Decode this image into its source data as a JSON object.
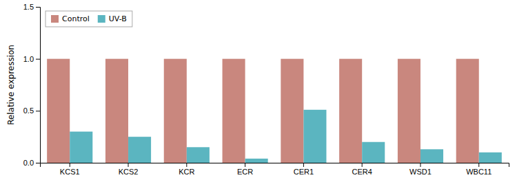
{
  "chart_data": {
    "type": "bar",
    "categories": [
      "KCS1",
      "KCS2",
      "KCR",
      "ECR",
      "CER1",
      "CER4",
      "WSD1",
      "WBC11"
    ],
    "series": [
      {
        "name": "Control",
        "color": "#C9877E",
        "values": [
          1.0,
          1.0,
          1.0,
          1.0,
          1.0,
          1.0,
          1.0,
          1.0
        ]
      },
      {
        "name": "UV-B",
        "color": "#5BB5C0",
        "values": [
          0.3,
          0.25,
          0.15,
          0.04,
          0.51,
          0.2,
          0.13,
          0.1
        ]
      }
    ],
    "ylabel": "Relative expression",
    "ylim": [
      0,
      1.5
    ],
    "yticks": [
      {
        "value": 0.0,
        "label": "0.0"
      },
      {
        "value": 0.5,
        "label": "0.5"
      },
      {
        "value": 1.0,
        "label": "1.0"
      },
      {
        "value": 1.5,
        "label": "1.5"
      }
    ],
    "legend": "upper left",
    "grid": false
  }
}
